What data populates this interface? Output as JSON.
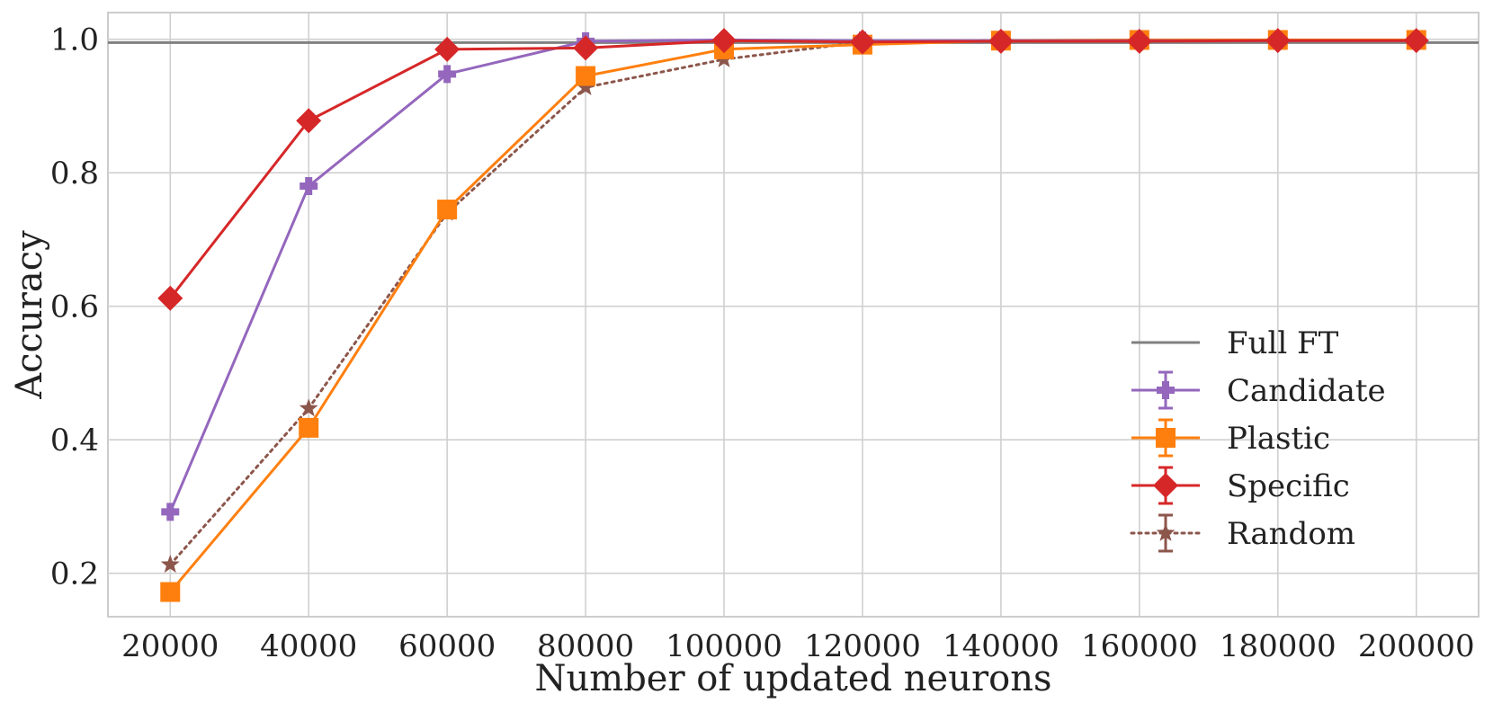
{
  "chart_data": {
    "type": "line",
    "xlabel": "Number of updated neurons",
    "ylabel": "Accuracy",
    "x": [
      20000,
      40000,
      60000,
      80000,
      100000,
      120000,
      140000,
      160000,
      180000,
      200000
    ],
    "xlim": [
      11000,
      209000
    ],
    "ylim": [
      0.135,
      1.04
    ],
    "xticks": [
      20000,
      40000,
      60000,
      80000,
      100000,
      120000,
      140000,
      160000,
      180000,
      200000
    ],
    "xtick_labels": [
      "20000",
      "40000",
      "60000",
      "80000",
      "100000",
      "120000",
      "140000",
      "160000",
      "180000",
      "200000"
    ],
    "yticks": [
      0.2,
      0.4,
      0.6,
      0.8,
      1.0
    ],
    "ytick_labels": [
      "0.2",
      "0.4",
      "0.6",
      "0.8",
      "1.0"
    ],
    "grid": true,
    "legend_position": "lower-right",
    "reference_line": {
      "name": "Full FT",
      "value": 0.995,
      "color": "#808080"
    },
    "series": [
      {
        "name": "Candidate",
        "color": "#9467bd",
        "marker": "plus",
        "dash": "solid",
        "values": [
          0.292,
          0.78,
          0.948,
          0.997,
          0.999,
          0.998,
          0.998,
          0.998,
          0.998,
          0.998
        ]
      },
      {
        "name": "Plastic",
        "color": "#ff7f0e",
        "marker": "square",
        "dash": "solid",
        "values": [
          0.172,
          0.418,
          0.745,
          0.945,
          0.985,
          0.992,
          0.998,
          0.999,
          0.999,
          0.999
        ]
      },
      {
        "name": "Specific",
        "color": "#d62728",
        "marker": "diamond",
        "dash": "solid",
        "values": [
          0.612,
          0.878,
          0.985,
          0.987,
          0.998,
          0.996,
          0.997,
          0.997,
          0.998,
          0.998
        ]
      },
      {
        "name": "Random",
        "color": "#8c564b",
        "marker": "star",
        "dash": "dotted",
        "values": [
          0.213,
          0.447,
          0.74,
          0.928,
          0.97,
          0.996,
          0.998,
          0.998,
          0.998,
          0.998
        ]
      }
    ]
  }
}
